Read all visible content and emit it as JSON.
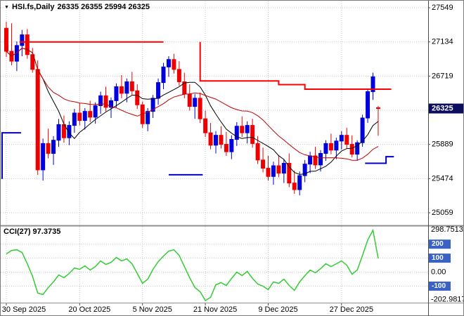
{
  "header": {
    "symbol_marker": "▼",
    "title": "HSI.fs,Daily",
    "ohlc": "26335 26355 25994 26325"
  },
  "indicator": {
    "label": "CCI(27) 97.3735"
  },
  "colors": {
    "bull": "#0000dd",
    "bear": "#ee0000",
    "ma_fast": "#000000",
    "ma_slow": "#c00000",
    "resistance": "#ff0000",
    "support": "#0000cc",
    "cci": "#33cc33",
    "grid": "#c4c4c4",
    "axis_text": "#000000",
    "badge_bg": "#3a62c4",
    "badge_text": "#ffffff",
    "price_tag_bg": "#0d0d60",
    "price_tag_text": "#ffffff",
    "separator": "#8f8f8f",
    "axis_line": "#4a4a4a"
  },
  "chart_data": {
    "type": "candlestick",
    "symbol": "HSI.fs",
    "timeframe": "Daily",
    "current_bar": {
      "open": 26335,
      "high": 26355,
      "low": 25994,
      "close": 26325
    },
    "price_axis": {
      "max": 27549,
      "min": 25059,
      "grid_prices": [
        27549,
        27134,
        26719,
        26304,
        25889,
        25474,
        25059
      ],
      "tick_values": [
        27549,
        27134,
        26719,
        25889,
        25474,
        25059
      ],
      "tick_labels": [
        "27549",
        "27134",
        "26719",
        "25889",
        "25474",
        "25059"
      ],
      "current_price": 26325,
      "current_price_label": "26325"
    },
    "x_axis": {
      "labels": [
        "30 Sep 2025",
        "20 Oct 2025",
        "5 Nov 2025",
        "21 Nov 2025",
        "9 Dec 2025",
        "27 Dec 2025"
      ],
      "indices": [
        0,
        14,
        26,
        38,
        50,
        64
      ]
    },
    "candles": [
      [
        27300,
        27380,
        26950,
        27020
      ],
      [
        27020,
        27360,
        26850,
        26900
      ],
      [
        26900,
        27140,
        26780,
        27090
      ],
      [
        27090,
        27280,
        26960,
        27220
      ],
      [
        27220,
        27290,
        26930,
        26980
      ],
      [
        26980,
        27060,
        26760,
        26800
      ],
      [
        26800,
        26910,
        25520,
        25580
      ],
      [
        25580,
        25960,
        25450,
        25900
      ],
      [
        25900,
        26080,
        25720,
        25780
      ],
      [
        25780,
        25990,
        25640,
        25940
      ],
      [
        25940,
        26200,
        25860,
        26130
      ],
      [
        26130,
        26240,
        25910,
        25970
      ],
      [
        25970,
        26170,
        25880,
        26120
      ],
      [
        26120,
        26320,
        26030,
        26270
      ],
      [
        26270,
        26390,
        26120,
        26180
      ],
      [
        26180,
        26330,
        26070,
        26290
      ],
      [
        26290,
        26420,
        26160,
        26220
      ],
      [
        26220,
        26400,
        26140,
        26360
      ],
      [
        26360,
        26530,
        26260,
        26480
      ],
      [
        26480,
        26590,
        26290,
        26340
      ],
      [
        26340,
        26460,
        26210,
        26420
      ],
      [
        26420,
        26630,
        26340,
        26590
      ],
      [
        26590,
        26730,
        26450,
        26510
      ],
      [
        26510,
        26690,
        26400,
        26650
      ],
      [
        26650,
        26770,
        26490,
        26540
      ],
      [
        26540,
        26620,
        26320,
        26370
      ],
      [
        26370,
        26410,
        26090,
        26140
      ],
      [
        26140,
        26330,
        26050,
        26290
      ],
      [
        26290,
        26490,
        26210,
        26450
      ],
      [
        26450,
        26690,
        26370,
        26640
      ],
      [
        26640,
        26880,
        26560,
        26830
      ],
      [
        26830,
        26960,
        26710,
        26920
      ],
      [
        26920,
        26990,
        26750,
        26800
      ],
      [
        26800,
        26900,
        26600,
        26650
      ],
      [
        26650,
        26760,
        26450,
        26500
      ],
      [
        26500,
        26620,
        26300,
        26350
      ],
      [
        26350,
        26500,
        26200,
        26450
      ],
      [
        26450,
        26520,
        26150,
        26200
      ],
      [
        26200,
        26300,
        25980,
        26030
      ],
      [
        26030,
        26150,
        25830,
        25880
      ],
      [
        25880,
        26050,
        25780,
        26000
      ],
      [
        26000,
        26110,
        25840,
        25890
      ],
      [
        25890,
        26040,
        25750,
        25800
      ],
      [
        25800,
        26000,
        25710,
        25950
      ],
      [
        25950,
        26160,
        25870,
        26110
      ],
      [
        26110,
        26230,
        25980,
        26030
      ],
      [
        26030,
        26170,
        25900,
        26120
      ],
      [
        26120,
        26200,
        25850,
        25900
      ],
      [
        25900,
        25990,
        25650,
        25700
      ],
      [
        25700,
        25850,
        25550,
        25600
      ],
      [
        25600,
        25750,
        25450,
        25500
      ],
      [
        25500,
        25680,
        25400,
        25630
      ],
      [
        25630,
        25760,
        25490,
        25540
      ],
      [
        25540,
        25710,
        25420,
        25660
      ],
      [
        25660,
        25780,
        25370,
        25420
      ],
      [
        25420,
        25570,
        25290,
        25340
      ],
      [
        25340,
        25560,
        25270,
        25510
      ],
      [
        25510,
        25700,
        25430,
        25650
      ],
      [
        25650,
        25800,
        25540,
        25750
      ],
      [
        25750,
        25860,
        25590,
        25640
      ],
      [
        25640,
        25820,
        25560,
        25780
      ],
      [
        25780,
        25940,
        25690,
        25900
      ],
      [
        25900,
        26020,
        25770,
        25820
      ],
      [
        25820,
        25970,
        25710,
        25930
      ],
      [
        25930,
        26050,
        25830,
        26000
      ],
      [
        26000,
        26090,
        25840,
        25890
      ],
      [
        25890,
        26000,
        25730,
        25770
      ],
      [
        25770,
        25940,
        25690,
        25910
      ],
      [
        25910,
        26250,
        25860,
        26210
      ],
      [
        26210,
        26570,
        26150,
        26530
      ],
      [
        26530,
        26760,
        26430,
        26710
      ],
      [
        26335,
        26355,
        25994,
        26325
      ]
    ],
    "moving_averages": [
      {
        "name": "ma-fast",
        "period": 8,
        "color_key": "ma_fast"
      },
      {
        "name": "ma-slow",
        "period": 20,
        "color_key": "ma_slow"
      }
    ],
    "trend_lines": {
      "resistance": {
        "color_key": "resistance",
        "segments": [
          [
            [
              2.5,
              27134
            ],
            [
              30,
              27134
            ]
          ],
          [
            [
              37,
              27134
            ],
            [
              37,
              26660
            ],
            [
              52,
              26660
            ],
            [
              52,
              26615
            ],
            [
              57,
              26615
            ],
            [
              57,
              26560
            ],
            [
              73.5,
              26560
            ]
          ]
        ]
      },
      "support": {
        "color_key": "support",
        "segments": [
          [
            [
              -0.8,
              25470
            ],
            [
              -0.8,
              26030
            ],
            [
              2.8,
              26030
            ]
          ],
          [
            [
              31,
              25520
            ],
            [
              37.5,
              25520
            ]
          ],
          [
            [
              68.5,
              25660
            ],
            [
              72.5,
              25660
            ],
            [
              72.5,
              25740
            ],
            [
              74,
              25740
            ]
          ]
        ]
      }
    },
    "indicator_panel": {
      "name": "CCI",
      "period": 27,
      "current_value": 97.3735,
      "scale_max": 298.7513,
      "scale_min": -202.9817,
      "scale_max_label": "298.7513",
      "scale_min_label": "-202.9817",
      "zero_label": "0.00",
      "levels": [
        {
          "value": 200,
          "label": "200"
        },
        {
          "value": 100,
          "label": "100"
        },
        {
          "value": -100,
          "label": "-100"
        }
      ],
      "color_key": "cci",
      "values": [
        130,
        155,
        160,
        140,
        60,
        -30,
        -150,
        -160,
        -110,
        -70,
        -20,
        -40,
        -10,
        30,
        20,
        45,
        15,
        40,
        80,
        55,
        70,
        105,
        80,
        95,
        60,
        -10,
        -80,
        -50,
        20,
        75,
        115,
        150,
        160,
        120,
        40,
        -40,
        -110,
        -140,
        -202.9817,
        -180,
        -90,
        -75,
        -95,
        -45,
        0,
        -25,
        5,
        -45,
        -85,
        -100,
        -125,
        -70,
        -80,
        -50,
        -95,
        -130,
        -70,
        -25,
        15,
        -5,
        25,
        60,
        40,
        60,
        80,
        50,
        -15,
        15,
        120,
        230,
        298.7513,
        97.3735
      ]
    }
  }
}
